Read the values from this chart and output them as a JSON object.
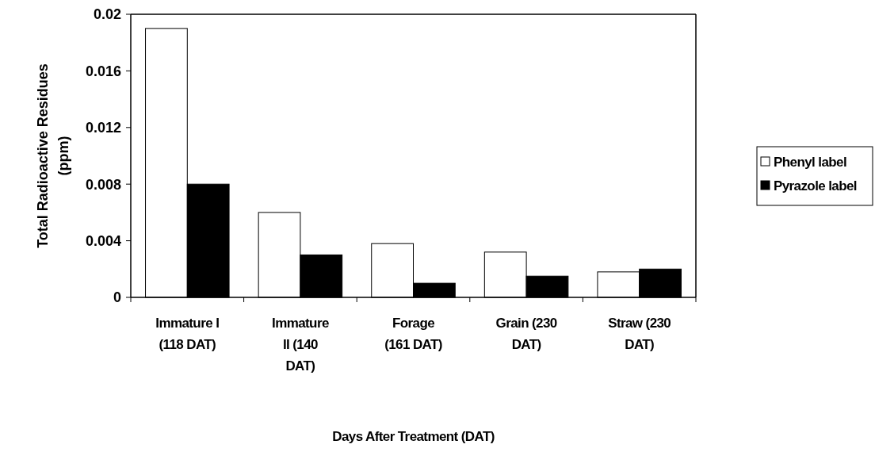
{
  "chart_data": {
    "type": "bar",
    "xlabel": "Days After Treatment (DAT)",
    "ylabel": "Total Radioactive Residues (ppm)",
    "categories": [
      "Immature I (118 DAT)",
      "Immature II (140 DAT)",
      "Forage (161 DAT)",
      "Grain (230 DAT)",
      "Straw (230 DAT)"
    ],
    "series": [
      {
        "name": "Phenyl label",
        "color": "#ffffff",
        "values": [
          0.019,
          0.006,
          0.0038,
          0.0032,
          0.0018
        ]
      },
      {
        "name": "Pyrazole label",
        "color": "#000000",
        "values": [
          0.008,
          0.003,
          0.001,
          0.0015,
          0.002
        ]
      }
    ],
    "ylim": [
      0,
      0.02
    ],
    "yticks": [
      0,
      0.004,
      0.008,
      0.012,
      0.016,
      0.02
    ],
    "legend": "right",
    "grid": false
  }
}
